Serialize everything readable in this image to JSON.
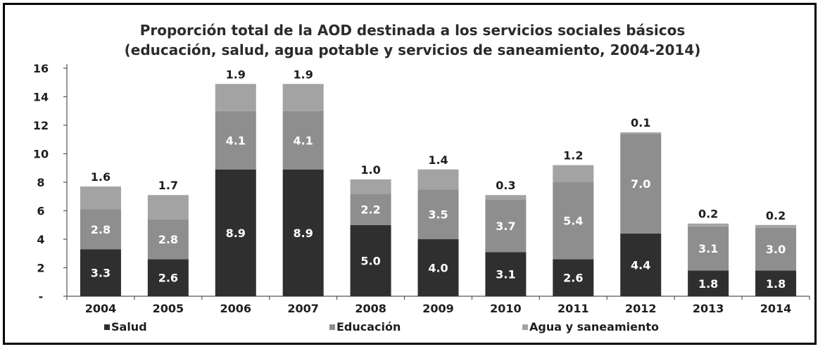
{
  "chart_data": {
    "type": "bar",
    "stacked": true,
    "title_line1": "Proporción total de la AOD destinada a los servicios sociales básicos",
    "title_line2": "(educación, salud, agua potable y servicios de saneamiento, 2004-2014)",
    "categories": [
      "2004",
      "2005",
      "2006",
      "2007",
      "2008",
      "2009",
      "2010",
      "2011",
      "2012",
      "2013",
      "2014"
    ],
    "series": [
      {
        "name": "Salud",
        "color": "#2f2f2f",
        "values": [
          3.3,
          2.6,
          8.9,
          8.9,
          5.0,
          4.0,
          3.1,
          2.6,
          4.4,
          1.8,
          1.8
        ],
        "labels": [
          "3.3",
          "2.6",
          "8.9",
          "8.9",
          "5.0",
          "4.0",
          "3.1",
          "2.6",
          "4.4",
          "1.8",
          "1.8"
        ]
      },
      {
        "name": "Educación",
        "color": "#8e8e8e",
        "values": [
          2.8,
          2.8,
          4.1,
          4.1,
          2.2,
          3.5,
          3.7,
          5.4,
          7.0,
          3.1,
          3.0
        ],
        "labels": [
          "2.8",
          "2.8",
          "4.1",
          "4.1",
          "2.2",
          "3.5",
          "3.7",
          "5.4",
          "7.0",
          "3.1",
          "3.0"
        ]
      },
      {
        "name": "Agua y saneamiento",
        "color": "#a3a3a3",
        "values": [
          1.6,
          1.7,
          1.9,
          1.9,
          1.0,
          1.4,
          0.3,
          1.2,
          0.1,
          0.2,
          0.2
        ],
        "labels": [
          "1.6",
          "1.7",
          "1.9",
          "1.9",
          "1.0",
          "1.4",
          "0.3",
          "1.2",
          "0.1",
          "0.2",
          "0.2"
        ]
      }
    ],
    "ylim": [
      0,
      16
    ],
    "yticks": [
      "-",
      "2",
      "4",
      "6",
      "8",
      "10",
      "12",
      "14",
      "16"
    ],
    "ytick_values": [
      0,
      2,
      4,
      6,
      8,
      10,
      12,
      14,
      16
    ],
    "grid": false,
    "legend": {
      "position": "bottom",
      "labels": [
        "Salud",
        "Educación",
        "Agua y saneamiento"
      ]
    },
    "axis_color": "#555555"
  }
}
